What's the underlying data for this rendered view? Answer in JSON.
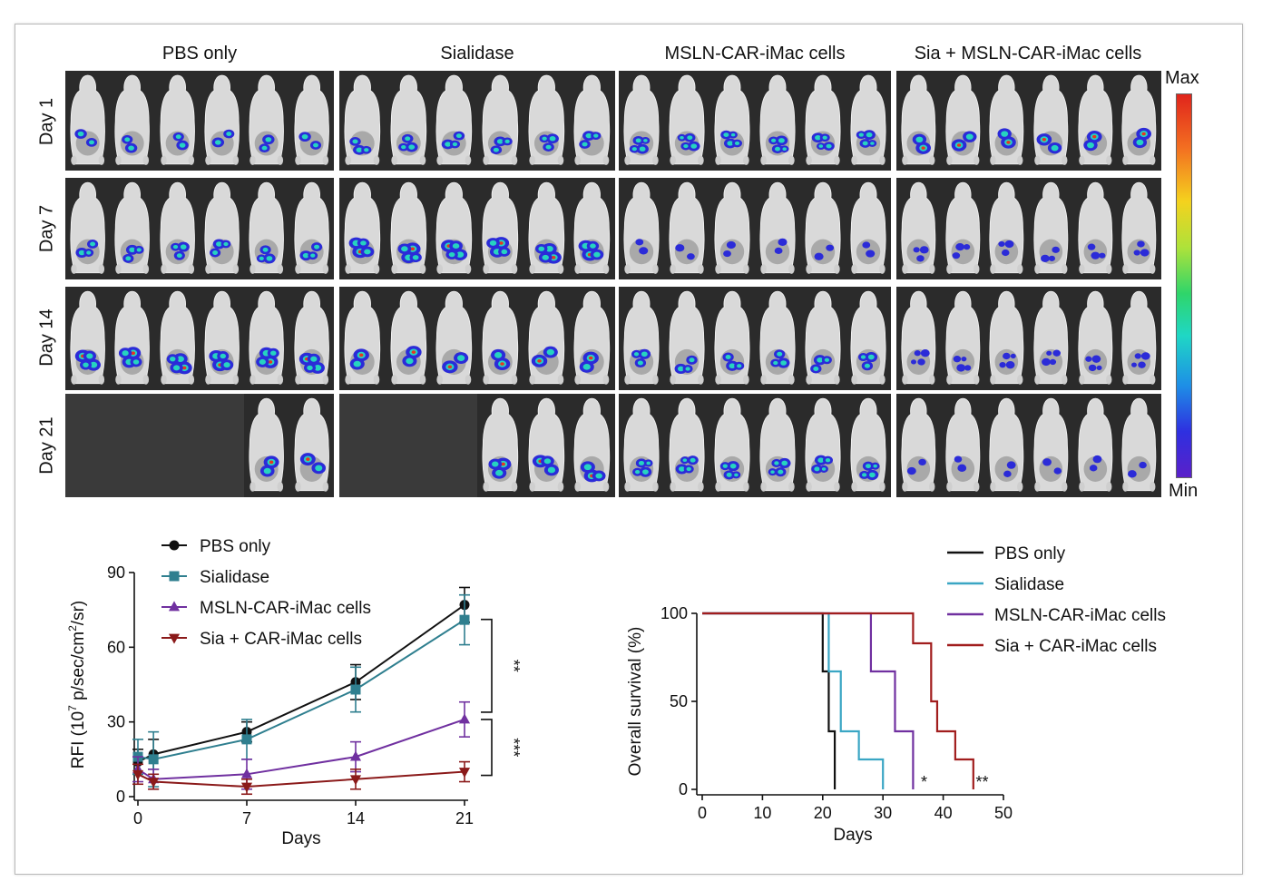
{
  "imaging": {
    "groups": [
      "PBS only",
      "Sialidase",
      "MSLN-CAR-iMac cells",
      "Sia + MSLN-CAR-iMac cells"
    ],
    "days": [
      "Day 1",
      "Day 7",
      "Day 14",
      "Day 21"
    ],
    "colorbar": {
      "max_label": "Max",
      "min_label": "Min"
    },
    "mice_visible": [
      [
        6,
        6,
        6,
        6
      ],
      [
        6,
        6,
        6,
        6
      ],
      [
        6,
        6,
        6,
        6
      ],
      [
        2,
        3,
        6,
        6
      ]
    ],
    "signal_level": [
      [
        2,
        2,
        2,
        3
      ],
      [
        2,
        3,
        1,
        1
      ],
      [
        3,
        3,
        2,
        1
      ],
      [
        3,
        3,
        2,
        1
      ]
    ]
  },
  "chart_data": [
    {
      "type": "line",
      "xlabel": "Days",
      "ylabel_parts": [
        "RFI (10",
        "7",
        " p/sec/cm",
        "2",
        "/sr)"
      ],
      "xlim": [
        0,
        21
      ],
      "xticks": [
        0,
        7,
        14,
        21
      ],
      "ylim": [
        0,
        90
      ],
      "yticks": [
        0,
        30,
        60,
        90
      ],
      "legend_position": "top-left",
      "series": [
        {
          "name": "PBS only",
          "color": "#111111",
          "marker": "circle",
          "x": [
            0,
            1,
            7,
            14,
            21
          ],
          "y": [
            14,
            17,
            26,
            46,
            77
          ],
          "err": [
            5,
            6,
            4,
            7,
            7
          ]
        },
        {
          "name": "Sialidase",
          "color": "#2f7f8f",
          "marker": "square",
          "x": [
            0,
            1,
            7,
            14,
            21
          ],
          "y": [
            16,
            15,
            23,
            43,
            71
          ],
          "err": [
            7,
            11,
            8,
            9,
            10
          ]
        },
        {
          "name": "MSLN-CAR-iMac cells",
          "color": "#7030a0",
          "marker": "triangle-up",
          "x": [
            0,
            1,
            7,
            14,
            21
          ],
          "y": [
            11,
            7,
            9,
            16,
            31
          ],
          "err": [
            5,
            4,
            6,
            6,
            7
          ]
        },
        {
          "name": "Sia + CAR-iMac cells",
          "color": "#8b1a1a",
          "marker": "triangle-down",
          "x": [
            0,
            1,
            7,
            14,
            21
          ],
          "y": [
            9,
            6,
            4,
            7,
            10
          ],
          "err": [
            4,
            3,
            3,
            4,
            4
          ]
        }
      ],
      "annotations": [
        {
          "text": "**",
          "between": [
            "PBS only",
            "MSLN-CAR-iMac cells"
          ],
          "x": 21
        },
        {
          "text": "***",
          "between": [
            "MSLN-CAR-iMac cells",
            "Sia + CAR-iMac cells"
          ],
          "x": 21
        }
      ]
    },
    {
      "type": "line",
      "subtype": "kaplan-meier",
      "xlabel": "Days",
      "ylabel": "Overall survival (%)",
      "xlim": [
        0,
        50
      ],
      "xticks": [
        0,
        10,
        20,
        30,
        40,
        50
      ],
      "ylim": [
        0,
        100
      ],
      "yticks": [
        0,
        50,
        100
      ],
      "legend_position": "top-right",
      "series": [
        {
          "name": "PBS only",
          "color": "#111111",
          "steps": [
            [
              0,
              100
            ],
            [
              20,
              67
            ],
            [
              21,
              33
            ],
            [
              22,
              0
            ]
          ]
        },
        {
          "name": "Sialidase",
          "color": "#3aa6c4",
          "steps": [
            [
              0,
              100
            ],
            [
              21,
              67
            ],
            [
              23,
              33
            ],
            [
              26,
              17
            ],
            [
              30,
              0
            ]
          ]
        },
        {
          "name": "MSLN-CAR-iMac cells",
          "color": "#7030a0",
          "steps": [
            [
              0,
              100
            ],
            [
              28,
              67
            ],
            [
              32,
              33
            ],
            [
              35,
              0
            ]
          ]
        },
        {
          "name": "Sia + CAR-iMac cells",
          "color": "#a11d1d",
          "steps": [
            [
              0,
              100
            ],
            [
              35,
              83
            ],
            [
              38,
              50
            ],
            [
              39,
              33
            ],
            [
              42,
              17
            ],
            [
              45,
              0
            ]
          ]
        }
      ],
      "annotations": [
        {
          "text": "*",
          "x": 36
        },
        {
          "text": "**",
          "x": 46
        }
      ]
    }
  ]
}
